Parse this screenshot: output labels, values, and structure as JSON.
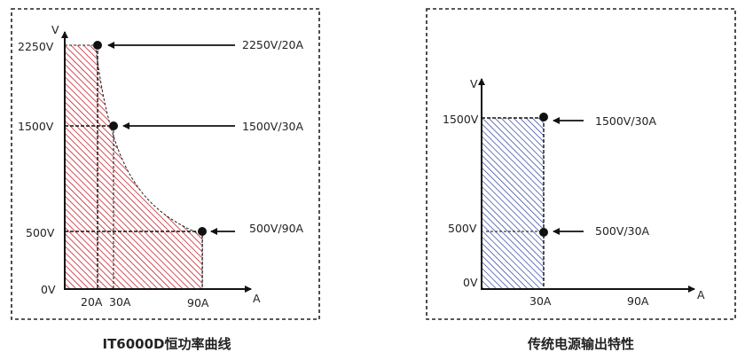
{
  "left_diagram": {
    "caption": "IT6000D恒功率曲线",
    "y_axis_label": "V",
    "x_axis_label": "A",
    "y_ticks": [
      "2250V",
      "1500V",
      "500V",
      "0V"
    ],
    "x_ticks": [
      "20A",
      "30A",
      "90A"
    ],
    "points": [
      {
        "label": "2250V/20A",
        "voltage": 2250,
        "current": 20
      },
      {
        "label": "1500V/30A",
        "voltage": 1500,
        "current": 30
      },
      {
        "label": "500V/90A",
        "voltage": 500,
        "current": 90
      }
    ],
    "fill_color": "#c8202c"
  },
  "right_diagram": {
    "caption": "传统电源输出特性",
    "y_axis_label": "V",
    "x_axis_label": "A",
    "y_ticks": [
      "1500V",
      "500V",
      "0V"
    ],
    "x_ticks": [
      "30A",
      "90A"
    ],
    "points": [
      {
        "label": "1500V/30A",
        "voltage": 1500,
        "current": 30
      },
      {
        "label": "500V/30A",
        "voltage": 500,
        "current": 30
      }
    ],
    "fill_color": "#2a3f9a"
  }
}
